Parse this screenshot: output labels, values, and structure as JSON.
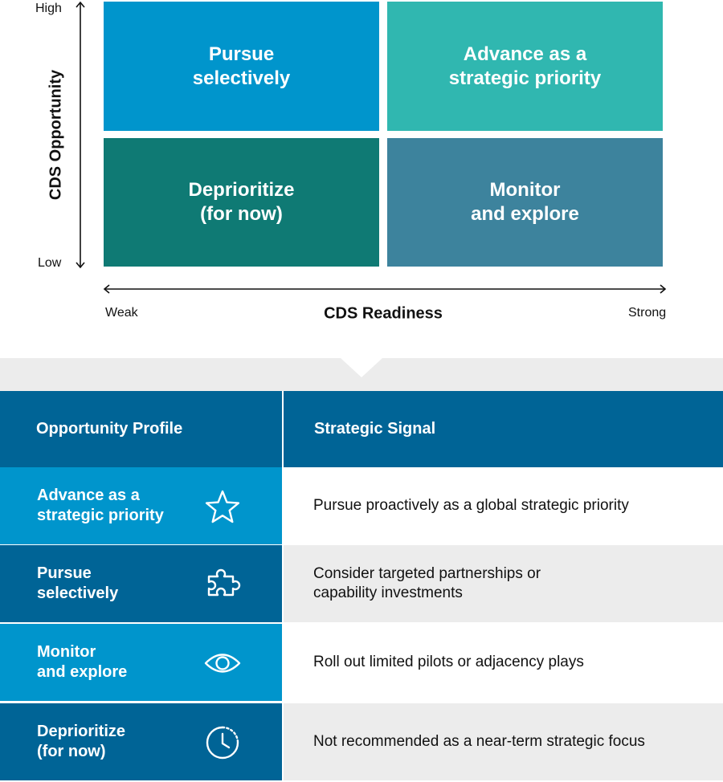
{
  "matrix": {
    "y_axis": {
      "title": "CDS Opportunity",
      "high": "High",
      "low": "Low"
    },
    "x_axis": {
      "title": "CDS Readiness",
      "weak": "Weak",
      "strong": "Strong"
    },
    "quadrants": {
      "top_left": {
        "line1": "Pursue",
        "line2": "selectively",
        "color": "#0095cc"
      },
      "top_right": {
        "line1": "Advance as a",
        "line2": "strategic priority",
        "color": "#30b7b0"
      },
      "bottom_left": {
        "line1": "Deprioritize",
        "line2": "(for now)",
        "color": "#0f7a74"
      },
      "bottom_right": {
        "line1": "Monitor",
        "line2": "and explore",
        "color": "#3d839d"
      }
    }
  },
  "table": {
    "header": {
      "left": "Opportunity Profile",
      "right": "Strategic Signal"
    },
    "rows": [
      {
        "profile_line1": "Advance as a",
        "profile_line2": "strategic priority",
        "icon": "star-icon",
        "signal_line1": "Pursue proactively as a global strategic priority",
        "signal_line2": ""
      },
      {
        "profile_line1": "Pursue",
        "profile_line2": "selectively",
        "icon": "puzzle-icon",
        "signal_line1": "Consider targeted partnerships or",
        "signal_line2": "capability investments"
      },
      {
        "profile_line1": "Monitor",
        "profile_line2": "and explore",
        "icon": "eye-icon",
        "signal_line1": "Roll out limited pilots or adjacency plays",
        "signal_line2": ""
      },
      {
        "profile_line1": "Deprioritize",
        "profile_line2": "(for now)",
        "icon": "clock-icon",
        "signal_line1": "Not recommended as a near-term strategic focus",
        "signal_line2": ""
      }
    ],
    "colors": {
      "header": "#006496",
      "light": "#0095cc",
      "dark": "#006496",
      "gray": "#ececec"
    }
  }
}
